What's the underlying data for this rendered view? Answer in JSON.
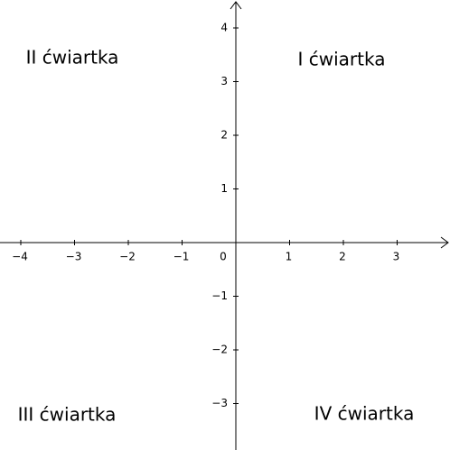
{
  "x_axis": {
    "ticks": [
      {
        "value": -4,
        "label": "−4"
      },
      {
        "value": -3,
        "label": "−3"
      },
      {
        "value": -2,
        "label": "−2"
      },
      {
        "value": -1,
        "label": "−1"
      },
      1,
      2,
      3
    ]
  },
  "y_axis": {
    "ticks": [
      4,
      3,
      2,
      1,
      {
        "value": -1,
        "label": "−1"
      },
      {
        "value": -2,
        "label": "−2"
      },
      {
        "value": -3,
        "label": "−3"
      }
    ]
  },
  "origin_label": "0",
  "quadrants": [
    "I ćwiartka",
    "II ćwiartka",
    "III ćwiartka",
    "IV ćwiartka"
  ]
}
